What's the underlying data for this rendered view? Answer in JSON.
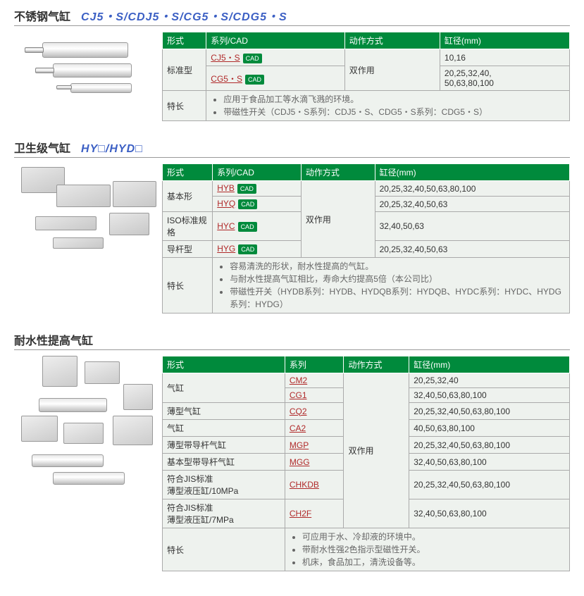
{
  "common": {
    "cad_label": "CAD"
  },
  "sections": [
    {
      "title_cn": "不锈钢气缸",
      "title_model": "CJ5・S/CDJ5・S/CG5・S/CDG5・S",
      "headers": [
        "形式",
        "系列/CAD",
        "动作方式",
        "缸径(mm)"
      ],
      "image_class": "p1",
      "rows": [
        {
          "type": "标准型",
          "series": "CJ5・S",
          "action": "双作用",
          "bore": "10,16",
          "type_rowspan": 2,
          "action_rowspan": 2
        },
        {
          "series": "CG5・S",
          "bore": "20,25,32,40,\n50,63,80,100"
        }
      ],
      "features_label": "特长",
      "features": [
        "应用于食品加工等水滴飞溅的环境。",
        "带磁性开关（CDJ5・S系列：CDJ5・S、CDG5・S系列：CDG5・S）"
      ]
    },
    {
      "title_cn": "卫生级气缸",
      "title_model": "HY□/HYD□",
      "headers": [
        "形式",
        "系列/CAD",
        "动作方式",
        "缸径(mm)"
      ],
      "image_class": "p2",
      "rows": [
        {
          "type": "基本形",
          "series": "HYB",
          "action": "双作用",
          "bore": "20,25,32,40,50,63,80,100",
          "type_rowspan": 2,
          "action_rowspan": 4
        },
        {
          "series": "HYQ",
          "bore": "20,25,32,40,50,63"
        },
        {
          "type": "ISO标准规格",
          "series": "HYC",
          "bore": "32,40,50,63"
        },
        {
          "type": "导杆型",
          "series": "HYG",
          "bore": "20,25,32,40,50,63"
        }
      ],
      "features_label": "特长",
      "features": [
        "容易清洗的形状，耐水性提高的气缸。",
        "与耐水性提高气缸相比，寿命大约提高5倍（本公司比）",
        "带磁性开关（HYDB系列：HYDB、HYDQB系列：HYDQB、HYDC系列：HYDC、HYDG系列：HYDG）"
      ]
    },
    {
      "title_cn": "耐水性提高气缸",
      "title_model": "",
      "headers": [
        "形式",
        "系列",
        "动作方式",
        "缸径(mm)"
      ],
      "image_class": "p3",
      "series_no_cad": true,
      "rows": [
        {
          "type": "气缸",
          "series": "CM2",
          "action": "双作用",
          "bore": "20,25,32,40",
          "type_rowspan": 2,
          "action_rowspan": 8
        },
        {
          "series": "CG1",
          "bore": "32,40,50,63,80,100"
        },
        {
          "type": "薄型气缸",
          "series": "CQ2",
          "bore": "20,25,32,40,50,63,80,100"
        },
        {
          "type": "气缸",
          "series": "CA2",
          "bore": "40,50,63,80,100"
        },
        {
          "type": "薄型带导杆气缸",
          "series": "MGP",
          "bore": "20,25,32,40,50,63,80,100"
        },
        {
          "type": "基本型带导杆气缸",
          "series": "MGG",
          "bore": "32,40,50,63,80,100"
        },
        {
          "type": "符合JIS标准\n薄型液压缸/10MPa",
          "series": "CHKDB",
          "bore": "20,25,32,40,50,63,80,100"
        },
        {
          "type": "符合JIS标准\n薄型液压缸/7MPa",
          "series": "CH2F",
          "bore": "32,40,50,63,80,100"
        }
      ],
      "features_label": "特长",
      "features": [
        "可应用于水、冷却液的环境中。",
        "带耐水性强2色指示型磁性开关。",
        "机床，食品加工，清洗设备等。"
      ]
    }
  ]
}
